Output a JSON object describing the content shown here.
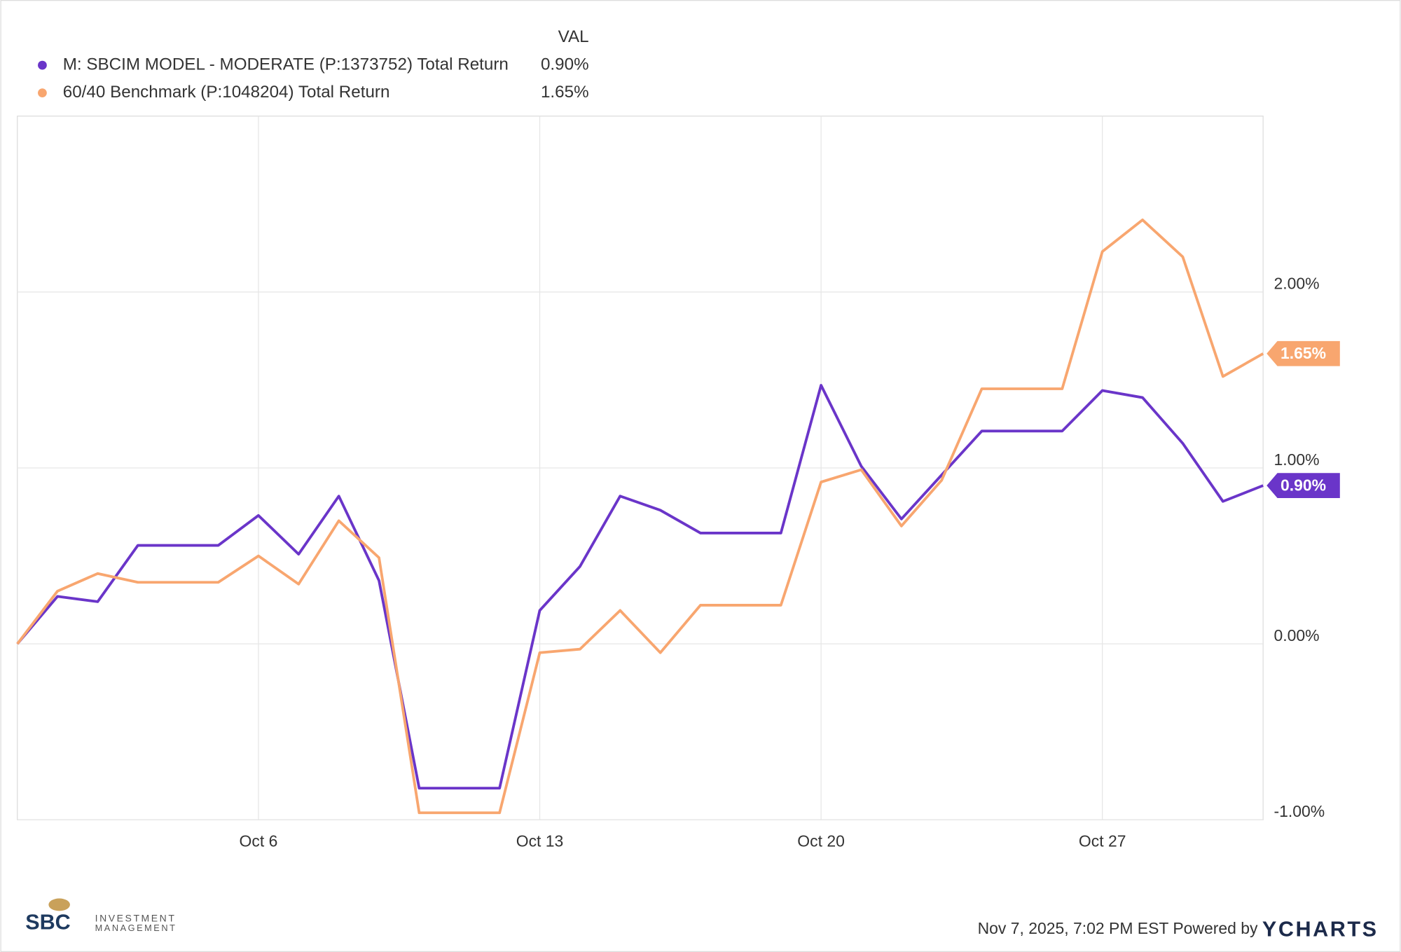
{
  "chart_data": {
    "type": "line",
    "legend_header": "VAL",
    "categories": [
      null,
      null,
      null,
      null,
      null,
      null,
      "Oct 6",
      null,
      null,
      null,
      null,
      null,
      null,
      "Oct 13",
      null,
      null,
      null,
      null,
      null,
      null,
      "Oct 20",
      null,
      null,
      null,
      null,
      null,
      null,
      "Oct 27",
      null,
      null,
      null,
      null
    ],
    "series": [
      {
        "name": "M: SBCIM MODEL - MODERATE (P:1373752) Total Return",
        "color": "#6a35c9",
        "values": [
          0,
          0.27,
          0.24,
          0.56,
          0.56,
          0.56,
          0.73,
          0.51,
          0.84,
          0.36,
          -0.82,
          -0.82,
          -0.82,
          0.19,
          0.44,
          0.84,
          0.76,
          0.63,
          0.63,
          0.63,
          1.47,
          1.01,
          0.71,
          0.96,
          1.21,
          1.21,
          1.21,
          1.44,
          1.4,
          1.14,
          0.81,
          0.9
        ],
        "value_labels": [
          null,
          null,
          null,
          null,
          null,
          null,
          null,
          null,
          null,
          null,
          null,
          null,
          null,
          null,
          null,
          null,
          null,
          null,
          null,
          null,
          null,
          null,
          null,
          null,
          null,
          null,
          null,
          null,
          null,
          null,
          null,
          "0.90%"
        ]
      },
      {
        "name": "60/40 Benchmark (P:1048204) Total Return",
        "color": "#f8a66f",
        "values": [
          0,
          0.3,
          0.4,
          0.35,
          0.35,
          0.35,
          0.5,
          0.34,
          0.7,
          0.49,
          -0.96,
          -0.96,
          -0.96,
          -0.05,
          -0.03,
          0.19,
          -0.05,
          0.22,
          0.22,
          0.22,
          0.92,
          0.99,
          0.67,
          0.93,
          1.45,
          1.45,
          1.45,
          2.23,
          2.41,
          2.2,
          1.52,
          1.65
        ],
        "value_labels": [
          null,
          null,
          null,
          null,
          null,
          null,
          null,
          null,
          null,
          null,
          null,
          null,
          null,
          null,
          null,
          null,
          null,
          null,
          null,
          null,
          null,
          null,
          null,
          null,
          null,
          null,
          null,
          null,
          null,
          null,
          null,
          "1.65%"
        ]
      }
    ],
    "ylim": [
      -1,
      3
    ],
    "yticks": [
      {
        "value": -1,
        "label": "-1.00%"
      },
      {
        "value": 0,
        "label": "0.00%"
      },
      {
        "value": 1,
        "label": "1.00%"
      },
      {
        "value": 2,
        "label": "2.00%"
      }
    ],
    "grid": true
  },
  "footer": {
    "timestamp": "Nov 7, 2025, 7:02 PM EST Powered by",
    "brand": "YCHARTS",
    "logo": {
      "mark": "SBC",
      "line1": "INVESTMENT",
      "line2": "MANAGEMENT"
    }
  }
}
